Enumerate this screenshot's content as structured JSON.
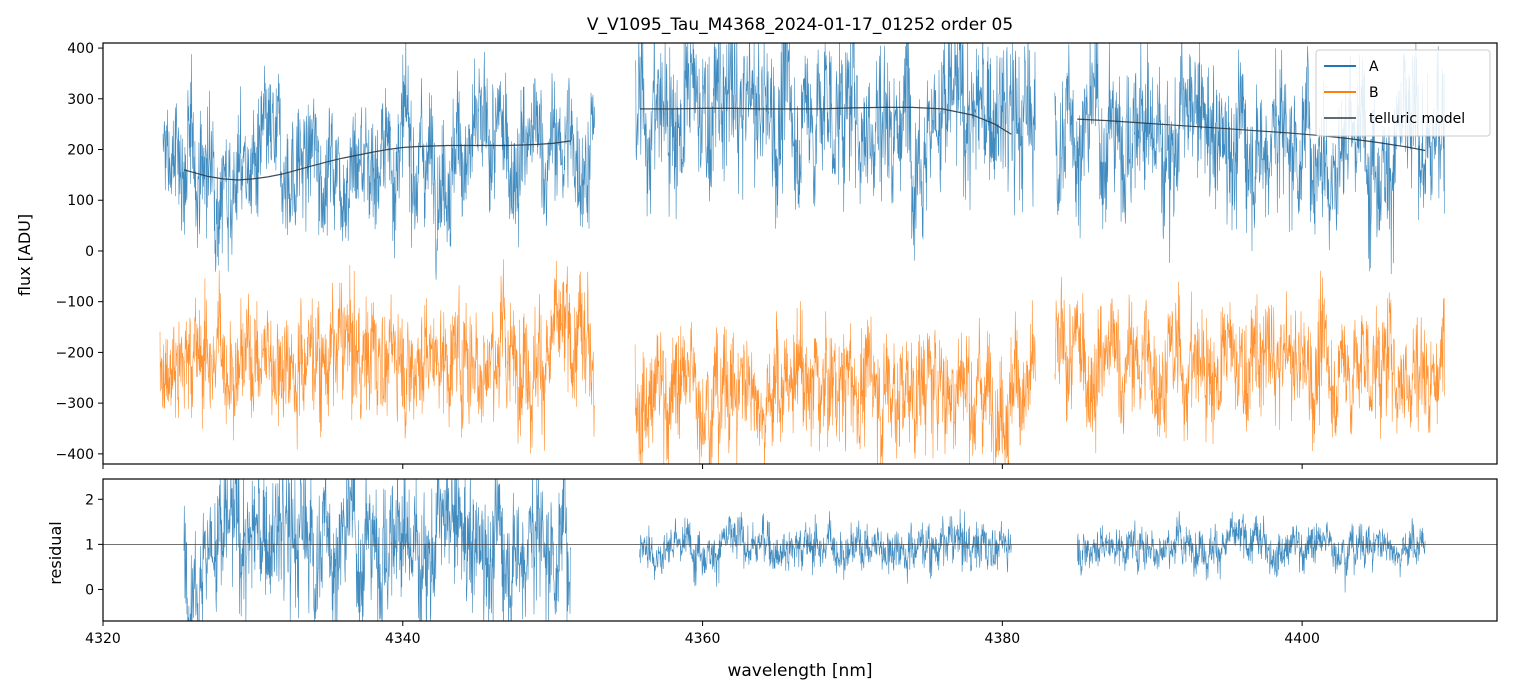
{
  "chart_data": [
    {
      "type": "line",
      "title": "V_V1095_Tau_M4368_2024-01-17_01252  order 05",
      "xlabel": "",
      "ylabel": "flux [ADU]",
      "xlim": [
        4320,
        4413
      ],
      "ylim": [
        -420,
        410
      ],
      "yticks": [
        -400,
        -300,
        -200,
        -100,
        0,
        100,
        200,
        300,
        400
      ],
      "ytick_labels": [
        "−400",
        "−300",
        "−200",
        "−100",
        "0",
        "100",
        "200",
        "300",
        "400"
      ],
      "legend": {
        "placement": "top-right",
        "entries": [
          "A",
          "B",
          "telluric model"
        ]
      },
      "series": [
        {
          "name": "A",
          "color": "#1f77b4",
          "style": "noisy spectrum",
          "segments": [
            {
              "x_range": [
                4324,
                4352.8
              ],
              "level": 185,
              "noise": 60,
              "telluric": true
            },
            {
              "x_range": [
                4355.5,
                4382.2
              ],
              "level": 270,
              "noise": 75,
              "telluric": true
            },
            {
              "x_range": [
                4383.5,
                4409.5
              ],
              "level": 225,
              "noise": 70,
              "telluric": true
            }
          ],
          "telluric_points_x": [
            4325.4,
            4326,
            4327,
            4328,
            4329,
            4330,
            4331,
            4332,
            4333,
            4334,
            4335,
            4336,
            4337,
            4338,
            4339,
            4340,
            4341,
            4342,
            4343,
            4344,
            4345,
            4346,
            4347,
            4348,
            4349,
            4350,
            4351.2,
            4355.8,
            4358,
            4360,
            4362,
            4364,
            4366,
            4368,
            4370,
            4372,
            4374,
            4376,
            4378,
            4379.5,
            4380.6,
            4385,
            4387,
            4389,
            4391,
            4393,
            4395,
            4397,
            4399,
            4401,
            4403,
            4405,
            4407,
            4408.2
          ]
        },
        {
          "name": "B",
          "color": "#ff7f0e",
          "style": "noisy spectrum",
          "segments": [
            {
              "x_range": [
                4323.8,
                4352.8
              ],
              "level": -200,
              "noise": 55
            },
            {
              "x_range": [
                4355.5,
                4382.2
              ],
              "level": -265,
              "noise": 55
            },
            {
              "x_range": [
                4383.5,
                4409.5
              ],
              "level": -225,
              "noise": 55
            }
          ]
        },
        {
          "name": "telluric model",
          "color": "#2b3a42",
          "style": "smooth line",
          "segments": [
            {
              "x": [
                4325.4,
                4326,
                4327,
                4328,
                4329,
                4330,
                4331,
                4332,
                4333,
                4334,
                4335,
                4336,
                4337,
                4338,
                4339,
                4340,
                4341,
                4342,
                4343,
                4344,
                4345,
                4346,
                4347,
                4348,
                4349,
                4350,
                4351.2
              ],
              "y": [
                160,
                155,
                147,
                142,
                140,
                142,
                146,
                152,
                160,
                168,
                176,
                183,
                189,
                195,
                200,
                204,
                206,
                207,
                208,
                208,
                208,
                208,
                208,
                209,
                210,
                212,
                217
              ]
            },
            {
              "x": [
                4355.8,
                4358,
                4360,
                4362,
                4364,
                4366,
                4368,
                4370,
                4372,
                4374,
                4376,
                4378,
                4379.5,
                4380.6
              ],
              "y": [
                280,
                280,
                281,
                281,
                280,
                280,
                280,
                282,
                283,
                283,
                280,
                268,
                250,
                230
              ]
            },
            {
              "x": [
                4385,
                4387,
                4389,
                4391,
                4393,
                4395,
                4397,
                4399,
                4401,
                4403,
                4405,
                4407,
                4408.2
              ],
              "y": [
                260,
                257,
                253,
                249,
                245,
                241,
                237,
                233,
                228,
                222,
                214,
                205,
                198
              ]
            }
          ]
        }
      ]
    },
    {
      "type": "line",
      "title": "",
      "xlabel": "wavelength [nm]",
      "ylabel": "residual",
      "xlim": [
        4320,
        4413
      ],
      "ylim": [
        -0.7,
        2.45
      ],
      "xticks": [
        4320,
        4340,
        4360,
        4380,
        4400
      ],
      "xtick_labels": [
        "4320",
        "4340",
        "4360",
        "4380",
        "4400"
      ],
      "yticks": [
        0,
        1,
        2
      ],
      "ytick_labels": [
        "0",
        "1",
        "2"
      ],
      "reference_line": 1,
      "series": [
        {
          "name": "residual",
          "color": "#1f77b4",
          "style": "noisy spectrum",
          "segments": [
            {
              "x_range": [
                4325.4,
                4351.2
              ],
              "level": 1.1,
              "noise": 0.75
            },
            {
              "x_range": [
                4355.8,
                4380.6
              ],
              "level": 1.0,
              "noise": 0.25
            },
            {
              "x_range": [
                4385,
                4408.2
              ],
              "level": 1.0,
              "noise": 0.22
            }
          ]
        }
      ]
    }
  ]
}
